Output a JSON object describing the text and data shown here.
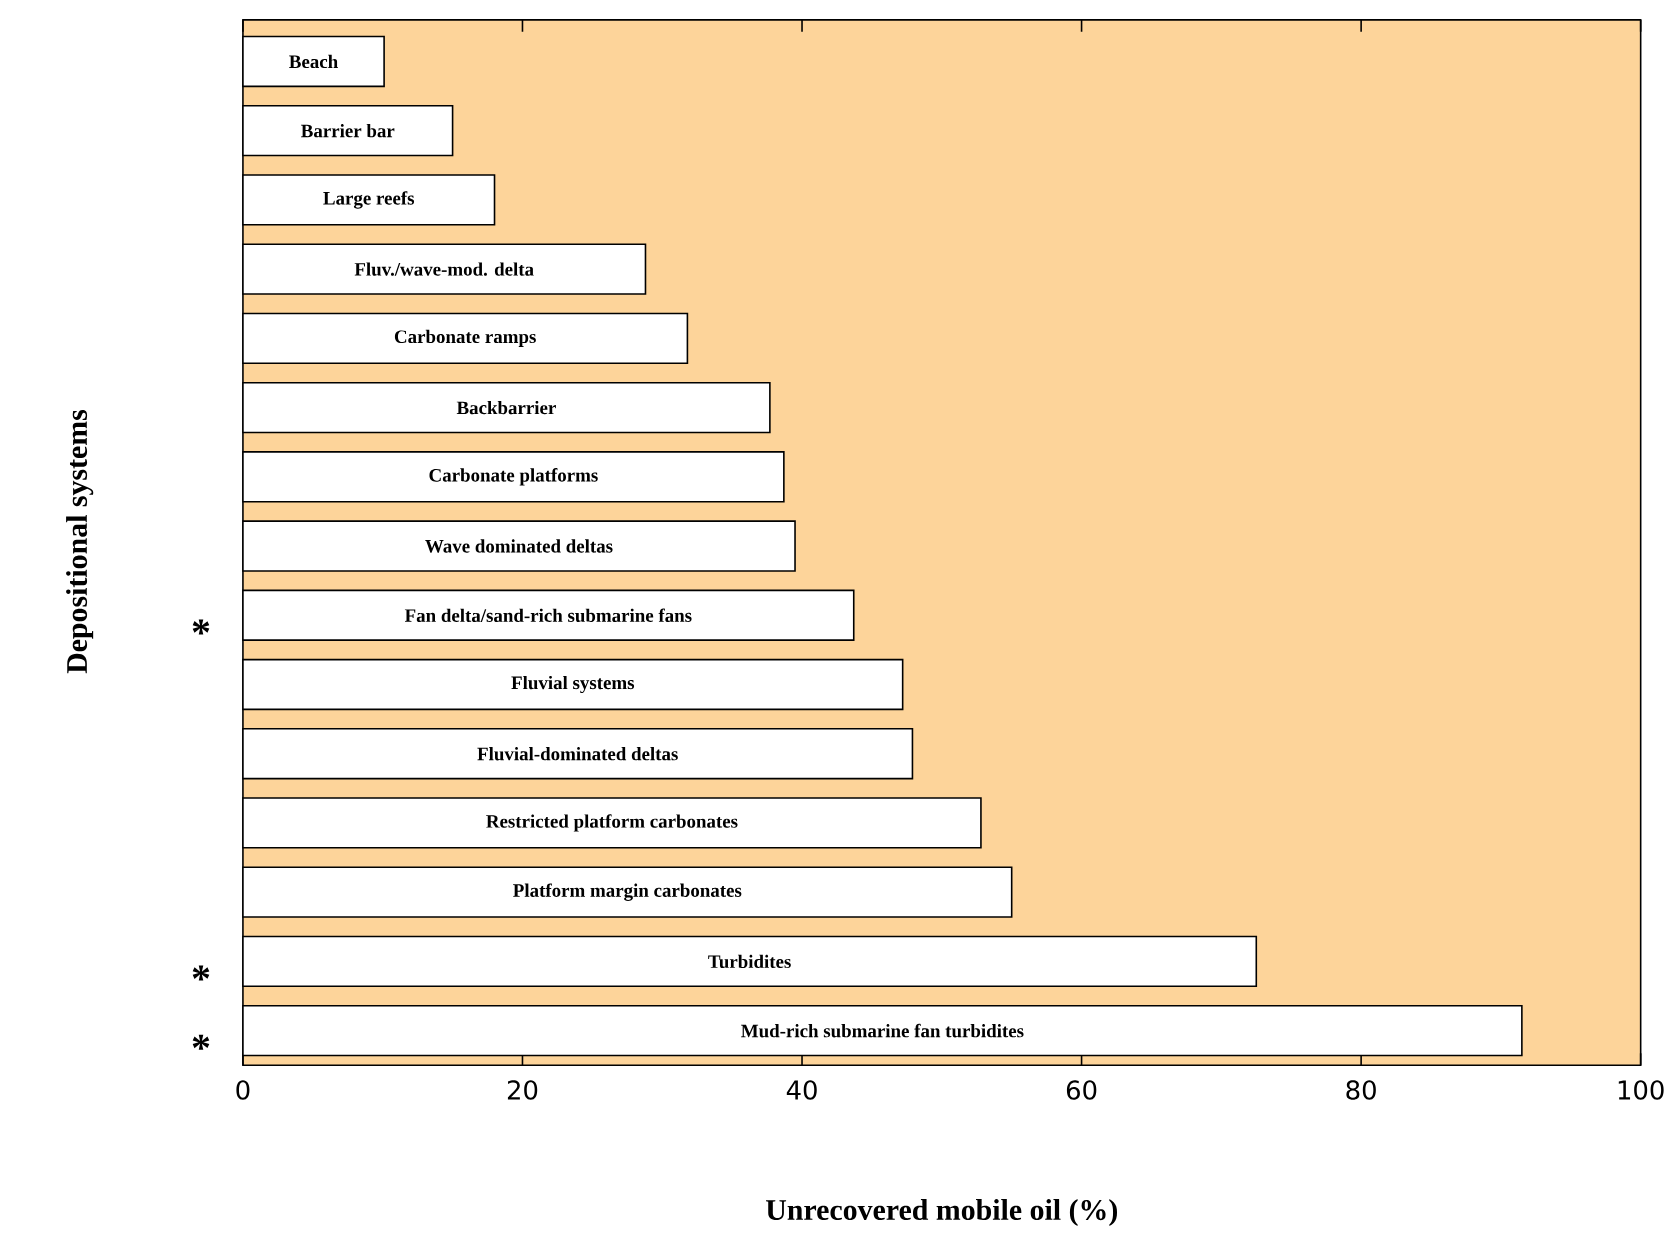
{
  "chart_data": {
    "type": "bar",
    "orientation": "horizontal",
    "xlabel": "Unrecovered mobile oil (%)",
    "ylabel": "Depositional systems",
    "categories": [
      "Beach",
      "Barrier bar",
      "Large reefs",
      "Fluv./wave-mod. delta",
      "Carbonate ramps",
      "Backbarrier",
      "Carbonate platforms",
      "Wave dominated deltas",
      "Fan delta/sand-rich submarine fans",
      "Fluvial systems",
      "Fluvial-dominated deltas",
      "Restricted platform carbonates",
      "Platform margin carbonates",
      "Turbidites",
      "Mud-rich submarine fan turbidites"
    ],
    "values": [
      10.1,
      15,
      18,
      28.8,
      31.8,
      37.7,
      38.7,
      39.5,
      43.7,
      47.2,
      47.9,
      52.8,
      55,
      72.5,
      91.5
    ],
    "color": "#ffffff",
    "xlim": [
      0,
      100
    ],
    "xticks": [
      0,
      20,
      40,
      60,
      80,
      100
    ],
    "annotations": [
      "*",
      "*",
      "*"
    ]
  }
}
